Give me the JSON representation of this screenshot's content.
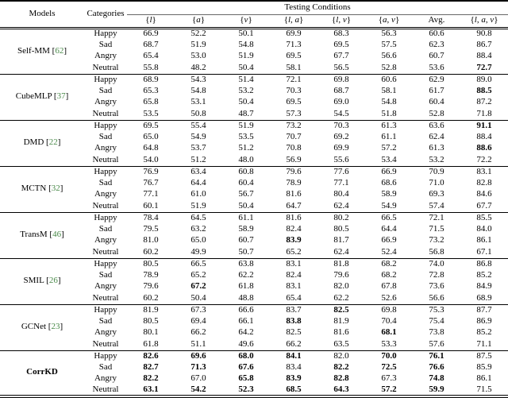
{
  "header": {
    "models": "Models",
    "categories": "Categories",
    "testing_conditions": "Testing Conditions",
    "conditions": [
      {
        "label": "{l}",
        "math": true
      },
      {
        "label": "{a}",
        "math": true
      },
      {
        "label": "{v}",
        "math": true
      },
      {
        "label": "{l, a}",
        "math": true
      },
      {
        "label": "{l, v}",
        "math": true
      },
      {
        "label": "{a, v}",
        "math": true
      },
      {
        "label": "Avg.",
        "math": false
      },
      {
        "label": "{l, a, v}",
        "math": true
      }
    ]
  },
  "colors": {
    "citation_green": "#4a8a4a",
    "rule_black": "#000000"
  },
  "models": [
    {
      "name": "Self-MM",
      "citation": "62",
      "name_bold": false,
      "rows": [
        {
          "category": "Happy",
          "values": [
            "66.9",
            "52.2",
            "50.1",
            "69.9",
            "68.3",
            "56.3",
            "60.6",
            "90.8"
          ],
          "bold": [
            0,
            0,
            0,
            0,
            0,
            0,
            0,
            0
          ]
        },
        {
          "category": "Sad",
          "values": [
            "68.7",
            "51.9",
            "54.8",
            "71.3",
            "69.5",
            "57.5",
            "62.3",
            "86.7"
          ],
          "bold": [
            0,
            0,
            0,
            0,
            0,
            0,
            0,
            0
          ]
        },
        {
          "category": "Angry",
          "values": [
            "65.4",
            "53.0",
            "51.9",
            "69.5",
            "67.7",
            "56.6",
            "60.7",
            "88.4"
          ],
          "bold": [
            0,
            0,
            0,
            0,
            0,
            0,
            0,
            0
          ]
        },
        {
          "category": "Neutral",
          "values": [
            "55.8",
            "48.2",
            "50.4",
            "58.1",
            "56.5",
            "52.8",
            "53.6",
            "72.7"
          ],
          "bold": [
            0,
            0,
            0,
            0,
            0,
            0,
            0,
            1
          ]
        }
      ]
    },
    {
      "name": "CubeMLP",
      "citation": "37",
      "name_bold": false,
      "rows": [
        {
          "category": "Happy",
          "values": [
            "68.9",
            "54.3",
            "51.4",
            "72.1",
            "69.8",
            "60.6",
            "62.9",
            "89.0"
          ],
          "bold": [
            0,
            0,
            0,
            0,
            0,
            0,
            0,
            0
          ]
        },
        {
          "category": "Sad",
          "values": [
            "65.3",
            "54.8",
            "53.2",
            "70.3",
            "68.7",
            "58.1",
            "61.7",
            "88.5"
          ],
          "bold": [
            0,
            0,
            0,
            0,
            0,
            0,
            0,
            1
          ]
        },
        {
          "category": "Angry",
          "values": [
            "65.8",
            "53.1",
            "50.4",
            "69.5",
            "69.0",
            "54.8",
            "60.4",
            "87.2"
          ],
          "bold": [
            0,
            0,
            0,
            0,
            0,
            0,
            0,
            0
          ]
        },
        {
          "category": "Neutral",
          "values": [
            "53.5",
            "50.8",
            "48.7",
            "57.3",
            "54.5",
            "51.8",
            "52.8",
            "71.8"
          ],
          "bold": [
            0,
            0,
            0,
            0,
            0,
            0,
            0,
            0
          ]
        }
      ]
    },
    {
      "name": "DMD",
      "citation": "22",
      "name_bold": false,
      "rows": [
        {
          "category": "Happy",
          "values": [
            "69.5",
            "55.4",
            "51.9",
            "73.2",
            "70.3",
            "61.3",
            "63.6",
            "91.1"
          ],
          "bold": [
            0,
            0,
            0,
            0,
            0,
            0,
            0,
            1
          ]
        },
        {
          "category": "Sad",
          "values": [
            "65.0",
            "54.9",
            "53.5",
            "70.7",
            "69.2",
            "61.1",
            "62.4",
            "88.4"
          ],
          "bold": [
            0,
            0,
            0,
            0,
            0,
            0,
            0,
            0
          ]
        },
        {
          "category": "Angry",
          "values": [
            "64.8",
            "53.7",
            "51.2",
            "70.8",
            "69.9",
            "57.2",
            "61.3",
            "88.6"
          ],
          "bold": [
            0,
            0,
            0,
            0,
            0,
            0,
            0,
            1
          ]
        },
        {
          "category": "Neutral",
          "values": [
            "54.0",
            "51.2",
            "48.0",
            "56.9",
            "55.6",
            "53.4",
            "53.2",
            "72.2"
          ],
          "bold": [
            0,
            0,
            0,
            0,
            0,
            0,
            0,
            0
          ]
        }
      ]
    },
    {
      "name": "MCTN",
      "citation": "32",
      "name_bold": false,
      "rows": [
        {
          "category": "Happy",
          "values": [
            "76.9",
            "63.4",
            "60.8",
            "79.6",
            "77.6",
            "66.9",
            "70.9",
            "83.1"
          ],
          "bold": [
            0,
            0,
            0,
            0,
            0,
            0,
            0,
            0
          ]
        },
        {
          "category": "Sad",
          "values": [
            "76.7",
            "64.4",
            "60.4",
            "78.9",
            "77.1",
            "68.6",
            "71.0",
            "82.8"
          ],
          "bold": [
            0,
            0,
            0,
            0,
            0,
            0,
            0,
            0
          ]
        },
        {
          "category": "Angry",
          "values": [
            "77.1",
            "61.0",
            "56.7",
            "81.6",
            "80.4",
            "58.9",
            "69.3",
            "84.6"
          ],
          "bold": [
            0,
            0,
            0,
            0,
            0,
            0,
            0,
            0
          ]
        },
        {
          "category": "Neutral",
          "values": [
            "60.1",
            "51.9",
            "50.4",
            "64.7",
            "62.4",
            "54.9",
            "57.4",
            "67.7"
          ],
          "bold": [
            0,
            0,
            0,
            0,
            0,
            0,
            0,
            0
          ]
        }
      ]
    },
    {
      "name": "TransM",
      "citation": "46",
      "name_bold": false,
      "rows": [
        {
          "category": "Happy",
          "values": [
            "78.4",
            "64.5",
            "61.1",
            "81.6",
            "80.2",
            "66.5",
            "72.1",
            "85.5"
          ],
          "bold": [
            0,
            0,
            0,
            0,
            0,
            0,
            0,
            0
          ]
        },
        {
          "category": "Sad",
          "values": [
            "79.5",
            "63.2",
            "58.9",
            "82.4",
            "80.5",
            "64.4",
            "71.5",
            "84.0"
          ],
          "bold": [
            0,
            0,
            0,
            0,
            0,
            0,
            0,
            0
          ]
        },
        {
          "category": "Angry",
          "values": [
            "81.0",
            "65.0",
            "60.7",
            "83.9",
            "81.7",
            "66.9",
            "73.2",
            "86.1"
          ],
          "bold": [
            0,
            0,
            0,
            1,
            0,
            0,
            0,
            0
          ]
        },
        {
          "category": "Neutral",
          "values": [
            "60.2",
            "49.9",
            "50.7",
            "65.2",
            "62.4",
            "52.4",
            "56.8",
            "67.1"
          ],
          "bold": [
            0,
            0,
            0,
            0,
            0,
            0,
            0,
            0
          ]
        }
      ]
    },
    {
      "name": "SMIL",
      "citation": "26",
      "name_bold": false,
      "rows": [
        {
          "category": "Happy",
          "values": [
            "80.5",
            "66.5",
            "63.8",
            "83.1",
            "81.8",
            "68.2",
            "74.0",
            "86.8"
          ],
          "bold": [
            0,
            0,
            0,
            0,
            0,
            0,
            0,
            0
          ]
        },
        {
          "category": "Sad",
          "values": [
            "78.9",
            "65.2",
            "62.2",
            "82.4",
            "79.6",
            "68.2",
            "72.8",
            "85.2"
          ],
          "bold": [
            0,
            0,
            0,
            0,
            0,
            0,
            0,
            0
          ]
        },
        {
          "category": "Angry",
          "values": [
            "79.6",
            "67.2",
            "61.8",
            "83.1",
            "82.0",
            "67.8",
            "73.6",
            "84.9"
          ],
          "bold": [
            0,
            1,
            0,
            0,
            0,
            0,
            0,
            0
          ]
        },
        {
          "category": "Neutral",
          "values": [
            "60.2",
            "50.4",
            "48.8",
            "65.4",
            "62.2",
            "52.6",
            "56.6",
            "68.9"
          ],
          "bold": [
            0,
            0,
            0,
            0,
            0,
            0,
            0,
            0
          ]
        }
      ]
    },
    {
      "name": "GCNet",
      "citation": "23",
      "name_bold": false,
      "rows": [
        {
          "category": "Happy",
          "values": [
            "81.9",
            "67.3",
            "66.6",
            "83.7",
            "82.5",
            "69.8",
            "75.3",
            "87.7"
          ],
          "bold": [
            0,
            0,
            0,
            0,
            1,
            0,
            0,
            0
          ]
        },
        {
          "category": "Sad",
          "values": [
            "80.5",
            "69.4",
            "66.1",
            "83.8",
            "81.9",
            "70.4",
            "75.4",
            "86.9"
          ],
          "bold": [
            0,
            0,
            0,
            1,
            0,
            0,
            0,
            0
          ]
        },
        {
          "category": "Angry",
          "values": [
            "80.1",
            "66.2",
            "64.2",
            "82.5",
            "81.6",
            "68.1",
            "73.8",
            "85.2"
          ],
          "bold": [
            0,
            0,
            0,
            0,
            0,
            1,
            0,
            0
          ]
        },
        {
          "category": "Neutral",
          "values": [
            "61.8",
            "51.1",
            "49.6",
            "66.2",
            "63.5",
            "53.3",
            "57.6",
            "71.1"
          ],
          "bold": [
            0,
            0,
            0,
            0,
            0,
            0,
            0,
            0
          ]
        }
      ]
    },
    {
      "name": "CorrKD",
      "citation": null,
      "name_bold": true,
      "rows": [
        {
          "category": "Happy",
          "values": [
            "82.6",
            "69.6",
            "68.0",
            "84.1",
            "82.0",
            "70.0",
            "76.1",
            "87.5"
          ],
          "bold": [
            1,
            1,
            1,
            1,
            0,
            1,
            1,
            0
          ]
        },
        {
          "category": "Sad",
          "values": [
            "82.7",
            "71.3",
            "67.6",
            "83.4",
            "82.2",
            "72.5",
            "76.6",
            "85.9"
          ],
          "bold": [
            1,
            1,
            1,
            0,
            1,
            1,
            1,
            0
          ]
        },
        {
          "category": "Angry",
          "values": [
            "82.2",
            "67.0",
            "65.8",
            "83.9",
            "82.8",
            "67.3",
            "74.8",
            "86.1"
          ],
          "bold": [
            1,
            0,
            1,
            1,
            1,
            0,
            1,
            0
          ]
        },
        {
          "category": "Neutral",
          "values": [
            "63.1",
            "54.2",
            "52.3",
            "68.5",
            "64.3",
            "57.2",
            "59.9",
            "71.5"
          ],
          "bold": [
            1,
            1,
            1,
            1,
            1,
            1,
            1,
            0
          ]
        }
      ]
    }
  ]
}
